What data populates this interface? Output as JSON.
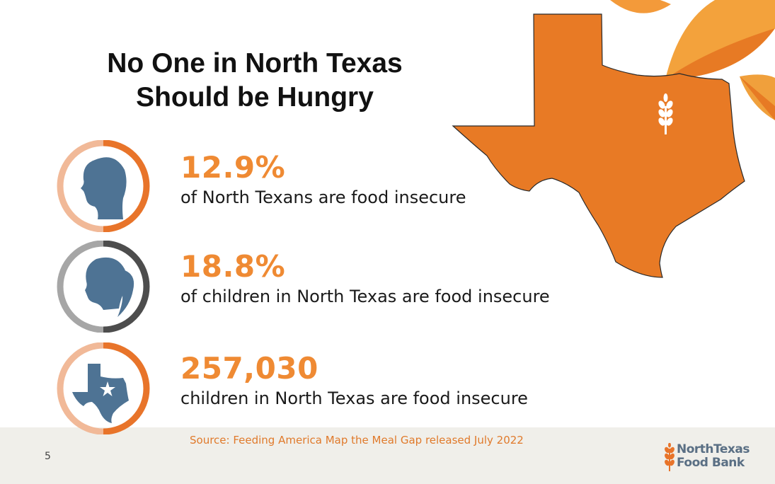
{
  "slide": {
    "title_line1": "No One in North Texas",
    "title_line2": "Should be Hungry",
    "page_number": "5",
    "source": "Source: Feeding America Map the Meal Gap released July 2022"
  },
  "stats": [
    {
      "value": "12.9%",
      "description": "of North Texans are food insecure",
      "icon": "adult-head-silhouette-icon"
    },
    {
      "value": "18.8%",
      "description": "of children in North Texas are food insecure",
      "icon": "child-head-silhouette-icon"
    },
    {
      "value": "257,030",
      "description": "children in North Texas are food insecure",
      "icon": "texas-star-icon"
    }
  ],
  "logo": {
    "line1": "NorthTexas",
    "line2": "Food Bank"
  },
  "colors": {
    "accent_orange": "#ef8a33",
    "map_orange": "#e87a25",
    "ring_light": "#f1b998",
    "ring_dark": "#e8742a",
    "ring_grey": "#a6a6a6",
    "ring_charcoal": "#4d4d4d",
    "silhouette_blue": "#4e7394",
    "footer_bg": "#f0efea"
  }
}
